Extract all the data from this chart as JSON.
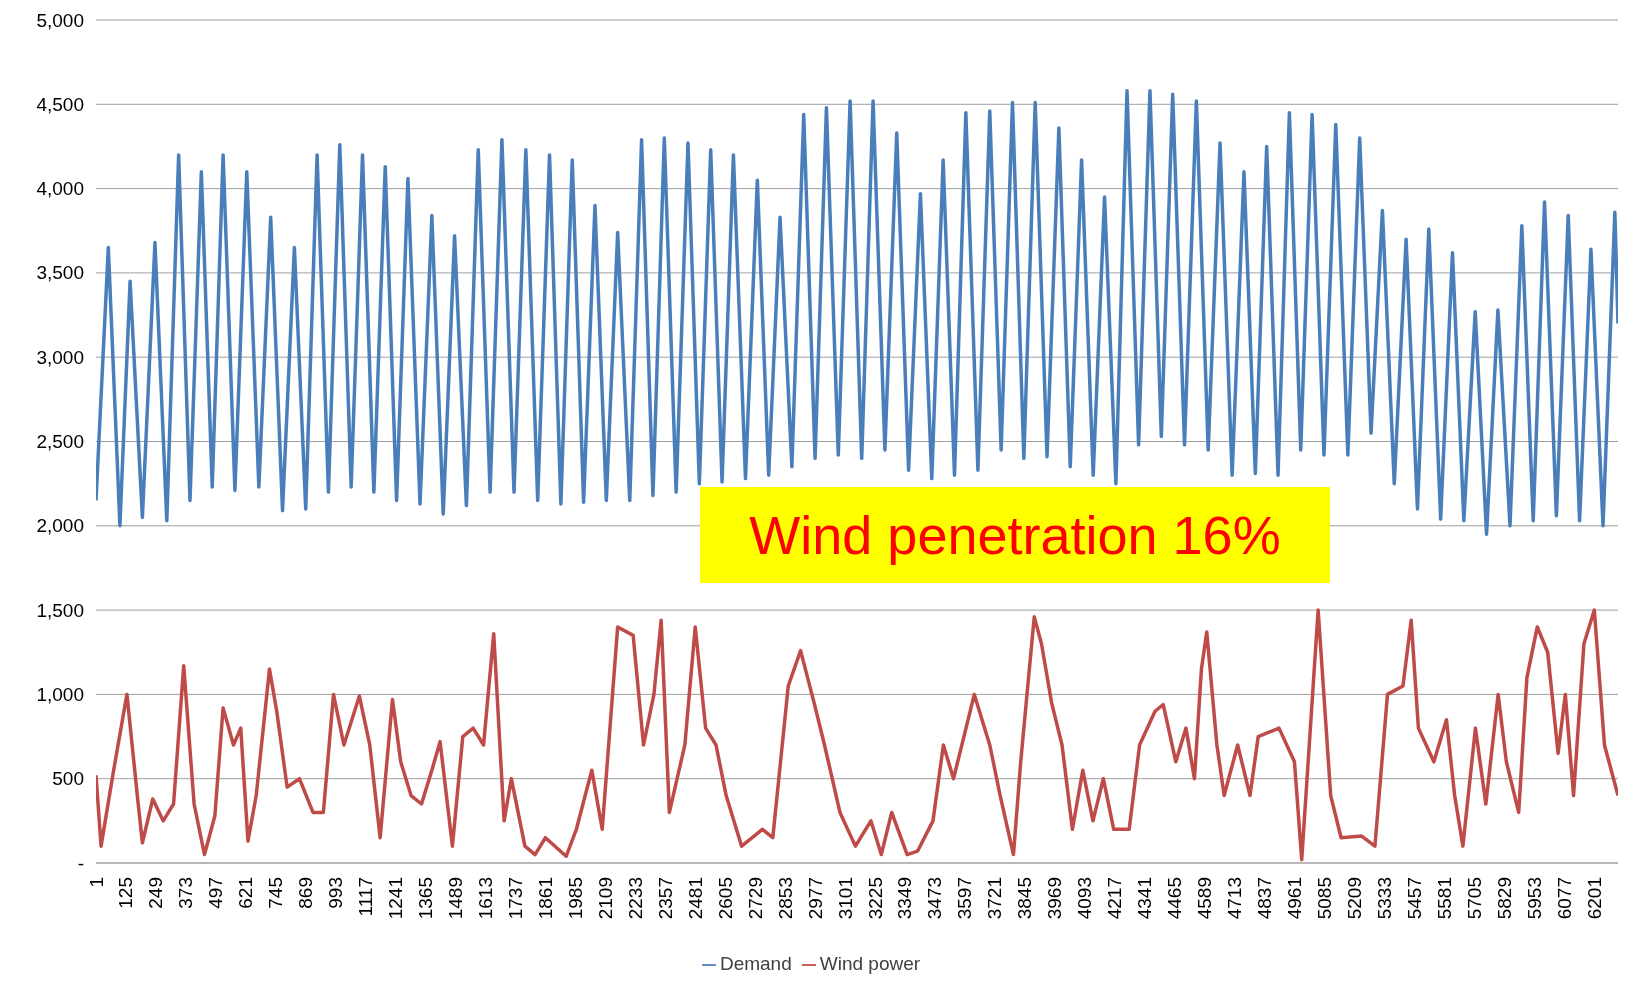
{
  "chart_data": {
    "type": "line",
    "annotations": [
      "Wind penetration 16%"
    ],
    "xlim": [
      1,
      6300
    ],
    "xticks": [
      1,
      125,
      249,
      373,
      497,
      621,
      745,
      869,
      993,
      1117,
      1241,
      1365,
      1489,
      1613,
      1737,
      1861,
      1985,
      2109,
      2233,
      2357,
      2481,
      2605,
      2729,
      2853,
      2977,
      3101,
      3225,
      3349,
      3473,
      3597,
      3721,
      3845,
      3969,
      4093,
      4217,
      4341,
      4465,
      4589,
      4713,
      4837,
      4961,
      5085,
      5209,
      5333,
      5457,
      5581,
      5705,
      5829,
      5953,
      6077,
      6201
    ],
    "ylim": [
      0,
      5000
    ],
    "yticks": [
      {
        "value": 0,
        "label": "-"
      },
      {
        "value": 500,
        "label": "500"
      },
      {
        "value": 1000,
        "label": "1,000"
      },
      {
        "value": 1500,
        "label": "1,500"
      },
      {
        "value": 2000,
        "label": "2,000"
      },
      {
        "value": 2500,
        "label": "2,500"
      },
      {
        "value": 3000,
        "label": "3,000"
      },
      {
        "value": 3500,
        "label": "3,500"
      },
      {
        "value": 4000,
        "label": "4,000"
      },
      {
        "value": 4500,
        "label": "4,500"
      },
      {
        "value": 5000,
        "label": "5,000"
      }
    ],
    "grid": "y",
    "legend": "bottom",
    "series": [
      {
        "name": "Demand",
        "color": "#4a7ebb",
        "x": [
          1,
          52,
          100,
          142,
          193,
          245,
          294,
          343,
          390,
          437,
          482,
          527,
          576,
          625,
          675,
          724,
          773,
          822,
          869,
          916,
          963,
          1010,
          1057,
          1104,
          1151,
          1198,
          1245,
          1292,
          1342,
          1391,
          1438,
          1485,
          1534,
          1583,
          1632,
          1681,
          1731,
          1780,
          1829,
          1878,
          1925,
          1972,
          2019,
          2066,
          2113,
          2160,
          2210,
          2259,
          2306,
          2353,
          2402,
          2451,
          2498,
          2545,
          2592,
          2639,
          2689,
          2738,
          2785,
          2832,
          2881,
          2930,
          2977,
          3024,
          3073,
          3122,
          3170,
          3217,
          3266,
          3315,
          3364,
          3413,
          3460,
          3507,
          3554,
          3601,
          3651,
          3700,
          3747,
          3794,
          3841,
          3888,
          3937,
          3986,
          4033,
          4080,
          4128,
          4175,
          4222,
          4268,
          4316,
          4363,
          4410,
          4457,
          4506,
          4555,
          4604,
          4653,
          4703,
          4752,
          4799,
          4846,
          4893,
          4940,
          4987,
          5034,
          5083,
          5132,
          5182,
          5231,
          5278,
          5325,
          5374,
          5423,
          5470,
          5517,
          5566,
          5615,
          5662,
          5709,
          5756,
          5803,
          5853,
          5902,
          5949,
          5996,
          6045,
          6094,
          6141,
          6188,
          6238,
          6287,
          6300
        ],
        "values": [
          2150,
          3650,
          2000,
          3450,
          2050,
          3680,
          2030,
          4200,
          2150,
          4100,
          2230,
          4200,
          2210,
          4100,
          2230,
          3830,
          2090,
          3650,
          2100,
          4200,
          2200,
          4260,
          2230,
          4200,
          2200,
          4130,
          2150,
          4060,
          2130,
          3840,
          2070,
          3720,
          2120,
          4230,
          2200,
          4290,
          2200,
          4230,
          2150,
          4200,
          2130,
          4170,
          2140,
          3900,
          2150,
          3740,
          2150,
          4290,
          2180,
          4300,
          2200,
          4270,
          2250,
          4230,
          2260,
          4200,
          2280,
          4050,
          2300,
          3830,
          2350,
          4440,
          2400,
          4480,
          2420,
          4520,
          2400,
          4520,
          2450,
          4330,
          2330,
          3970,
          2280,
          4170,
          2300,
          4450,
          2330,
          4460,
          2450,
          4510,
          2400,
          4510,
          2410,
          4360,
          2350,
          4170,
          2300,
          3950,
          2250,
          4580,
          2480,
          4580,
          2530,
          4560,
          2480,
          4520,
          2450,
          4270,
          2300,
          4100,
          2310,
          4250,
          2300,
          4450,
          2450,
          4440,
          2420,
          4380,
          2420,
          4300,
          2550,
          3870,
          2250,
          3700,
          2100,
          3760,
          2040,
          3620,
          2030,
          3270,
          1950,
          3280,
          2000,
          3780,
          2030,
          3920,
          2060,
          3840,
          2030,
          3640,
          2000,
          3860,
          3200
        ]
      },
      {
        "name": "Wind power",
        "color": "#be4b48",
        "x": [
          1,
          22,
          74,
          129,
          172,
          193,
          236,
          279,
          322,
          364,
          407,
          450,
          493,
          527,
          570,
          600,
          630,
          664,
          719,
          749,
          792,
          843,
          899,
          942,
          984,
          1027,
          1091,
          1134,
          1177,
          1228,
          1262,
          1305,
          1348,
          1391,
          1425,
          1476,
          1519,
          1562,
          1605,
          1647,
          1690,
          1720,
          1776,
          1818,
          1861,
          1947,
          1989,
          2053,
          2096,
          2160,
          2224,
          2267,
          2310,
          2340,
          2374,
          2438,
          2481,
          2524,
          2567,
          2609,
          2673,
          2759,
          2802,
          2866,
          2917,
          2973,
          3016,
          3080,
          3144,
          3208,
          3251,
          3294,
          3358,
          3401,
          3465,
          3508,
          3550,
          3593,
          3636,
          3700,
          3743,
          3798,
          3828,
          3884,
          3914,
          3956,
          3999,
          4042,
          4085,
          4127,
          4170,
          4213,
          4277,
          4320,
          4384,
          4418,
          4470,
          4512,
          4547,
          4576,
          4598,
          4640,
          4670,
          4726,
          4777,
          4811,
          4897,
          4961,
          4991,
          5059,
          5111,
          5154,
          5239,
          5294,
          5346,
          5410,
          5444,
          5474,
          5538,
          5590,
          5624,
          5658,
          5710,
          5753,
          5804,
          5838,
          5889,
          5923,
          5966,
          6009,
          6052,
          6082,
          6116,
          6159,
          6202,
          6244,
          6300
        ],
        "values": [
          520,
          100,
          550,
          1000,
          400,
          120,
          380,
          250,
          350,
          1170,
          350,
          50,
          280,
          920,
          700,
          800,
          130,
          400,
          1150,
          900,
          450,
          500,
          300,
          300,
          1000,
          700,
          990,
          700,
          150,
          970,
          600,
          400,
          350,
          550,
          720,
          100,
          750,
          800,
          700,
          1360,
          250,
          500,
          100,
          50,
          150,
          40,
          200,
          550,
          200,
          1400,
          1350,
          700,
          1000,
          1440,
          300,
          700,
          1400,
          800,
          700,
          400,
          100,
          200,
          150,
          1050,
          1260,
          950,
          700,
          300,
          100,
          250,
          50,
          300,
          50,
          70,
          250,
          700,
          500,
          750,
          1000,
          700,
          400,
          50,
          600,
          1460,
          1300,
          950,
          700,
          200,
          550,
          250,
          500,
          200,
          200,
          700,
          900,
          940,
          600,
          800,
          500,
          1150,
          1370,
          700,
          400,
          700,
          400,
          750,
          800,
          600,
          20,
          1500,
          400,
          150,
          160,
          100,
          1000,
          1050,
          1440,
          800,
          600,
          850,
          400,
          100,
          800,
          350,
          1000,
          600,
          300,
          1100,
          1400,
          1250,
          650,
          1000,
          400,
          1300,
          1500,
          700,
          400
        ]
      }
    ]
  }
}
